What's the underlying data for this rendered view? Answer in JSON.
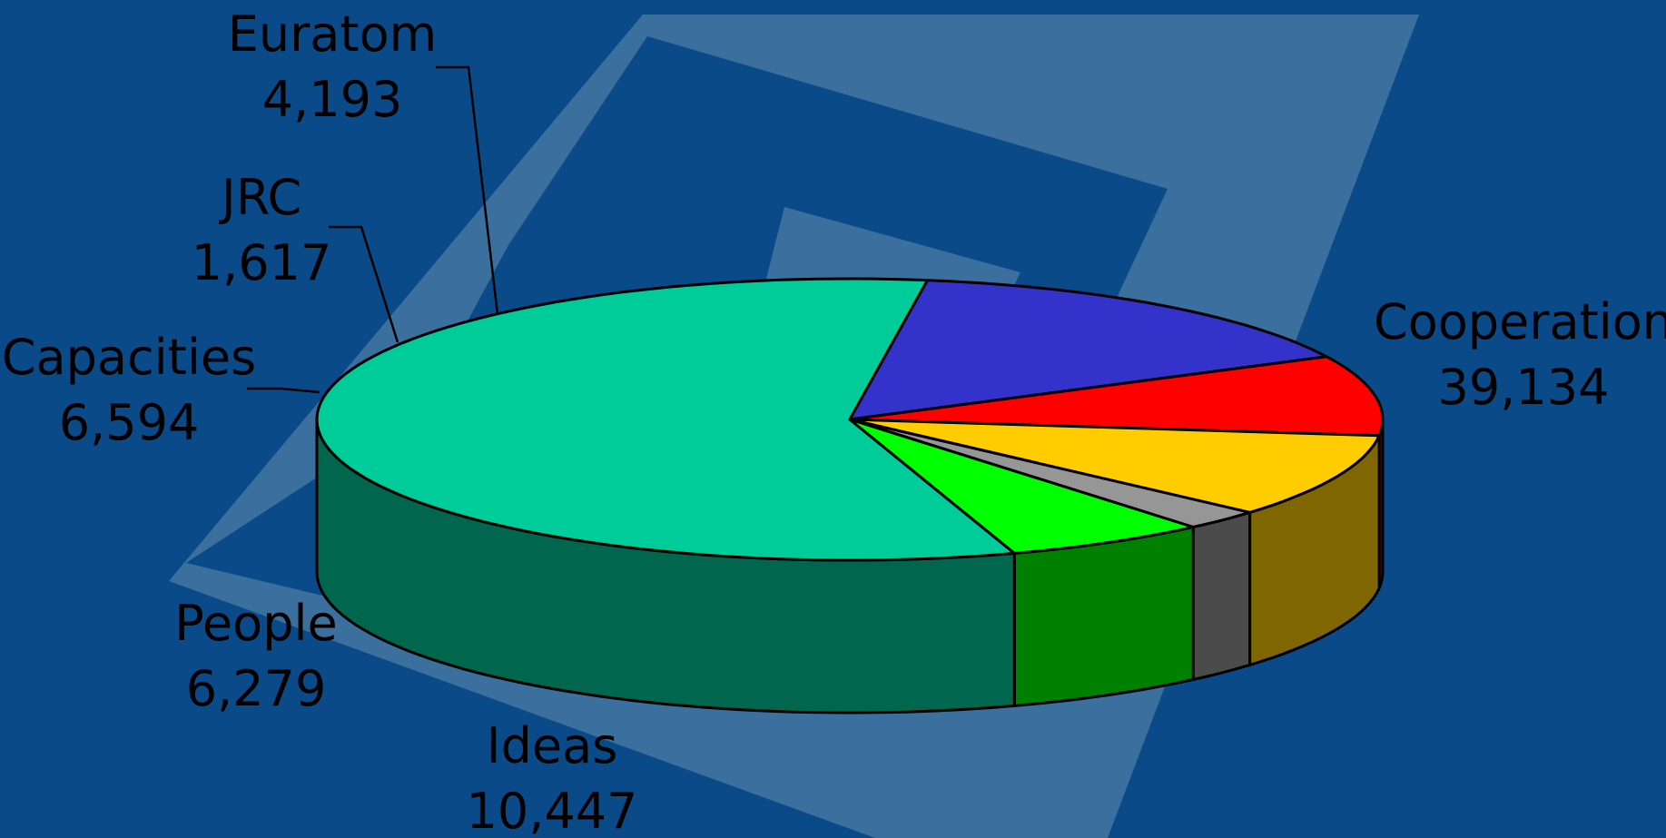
{
  "chart_data": {
    "type": "pie",
    "style": "3d",
    "title": "",
    "slices": [
      {
        "label": "Cooperation",
        "value": "39,134",
        "v": 39134,
        "color": "#00cc99",
        "side_color": "#00664d"
      },
      {
        "label": "Ideas",
        "value": "10,447",
        "v": 10447,
        "color": "#3333cc",
        "side_color": "#1a1a5e"
      },
      {
        "label": "People",
        "value": "6,279",
        "v": 6279,
        "color": "#ff0000",
        "side_color": "#800000"
      },
      {
        "label": "Capacities",
        "value": "6,594",
        "v": 6594,
        "color": "#ffcc00",
        "side_color": "#806600"
      },
      {
        "label": "JRC",
        "value": "1,617",
        "v": 1617,
        "color": "#969696",
        "side_color": "#4b4b4b"
      },
      {
        "label": "Euratom",
        "value": "4,193",
        "v": 4193,
        "color": "#00ff00",
        "side_color": "#008000"
      }
    ],
    "legend": "none",
    "data_labels": "outside"
  },
  "colors": {
    "background": "#0b4a88",
    "logo_light": "#3a6f9e",
    "outline": "#000000"
  }
}
